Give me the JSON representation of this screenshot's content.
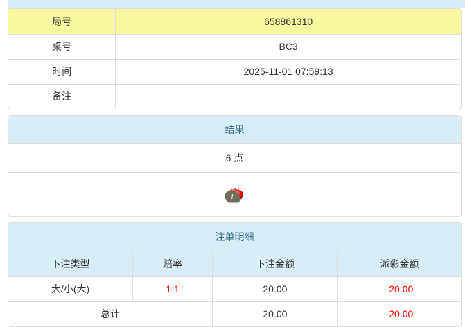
{
  "game_info": {
    "rows": [
      {
        "label": "局号",
        "value": "658861310",
        "highlight": true
      },
      {
        "label": "桌号",
        "value": "BC3",
        "highlight": false
      },
      {
        "label": "时间",
        "value": "2025-11-01 07:59:13",
        "highlight": false
      },
      {
        "label": "备注",
        "value": "",
        "highlight": false
      }
    ]
  },
  "result_panel": {
    "title": "结果",
    "points": "6 点",
    "dice": [
      1,
      4,
      1
    ],
    "info_icon_label": "i"
  },
  "bet_panel": {
    "title": "注单明细",
    "columns": [
      "下注类型",
      "赔率",
      "下注金额",
      "派彩金额"
    ],
    "rows": [
      {
        "bet_type": "大/小(大)",
        "odds": "1:1",
        "bet_amount": "20.00",
        "payout": "-20.00"
      }
    ],
    "total": {
      "label": "总计",
      "bet_amount": "20.00",
      "payout": "-20.00"
    }
  },
  "colors": {
    "header_bg": "#d9edf7",
    "header_text": "#31708f",
    "highlight_yellow": "#f8f8a0",
    "negative_red": "#ff0000",
    "border": "#dddddd",
    "text": "#333333",
    "info_tag_bg": "#706f5c",
    "die_pip_red": "#e01010"
  }
}
